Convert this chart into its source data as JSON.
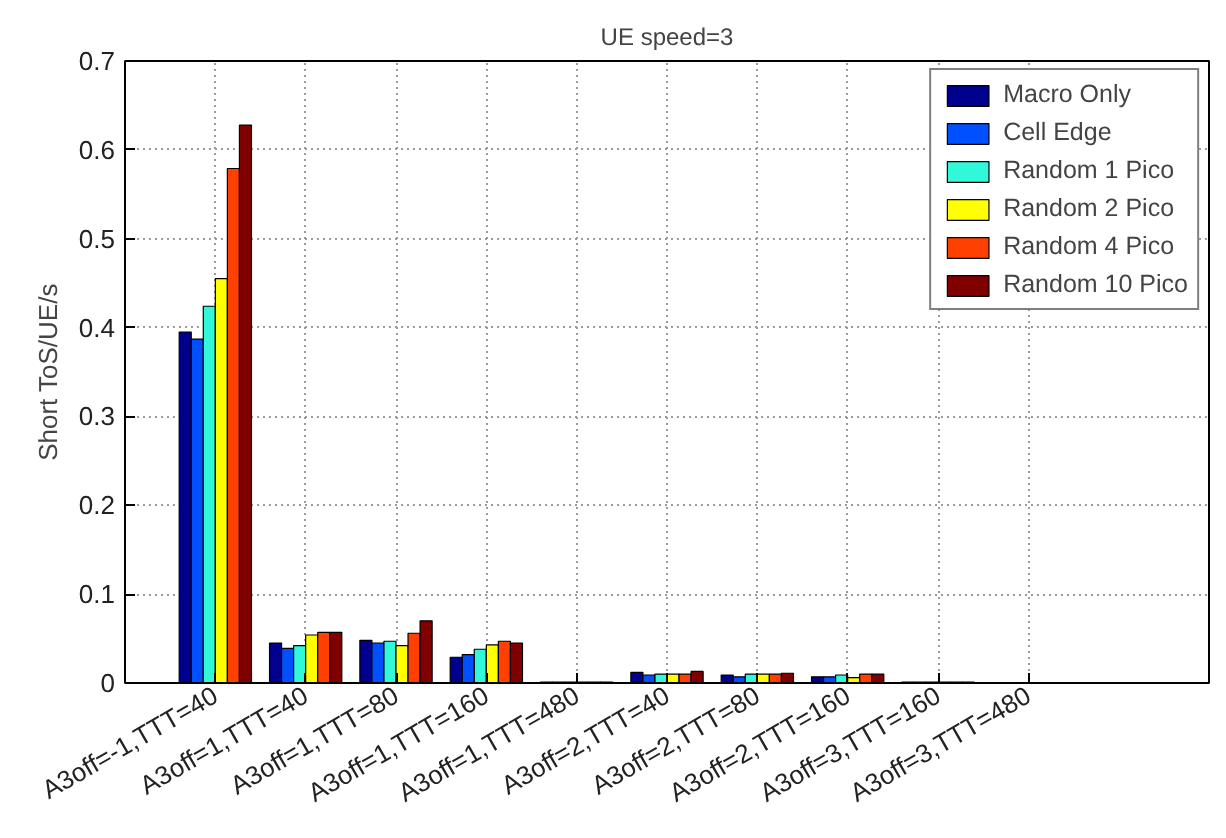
{
  "chart_data": {
    "type": "bar",
    "title": "UE speed=3",
    "ylabel": "Short ToS/UE/s",
    "categories": [
      "A3off=-1,TTT=40",
      "A3off=1,TTT=40",
      "A3off=1,TTT=80",
      "A3off=1,TTT=160",
      "A3off=1,TTT=480",
      "A3off=2,TTT=40",
      "A3off=2,TTT=80",
      "A3off=2,TTT=160",
      "A3off=3,TTT=160",
      "A3off=3,TTT=480"
    ],
    "series": [
      {
        "name": "Macro Only",
        "color": "#00008f",
        "values": [
          0.395,
          0.045,
          0.048,
          0.029,
          0.001,
          0.012,
          0.009,
          0.007,
          0.001,
          null
        ]
      },
      {
        "name": "Cell Edge",
        "color": "#0050ff",
        "values": [
          0.387,
          0.039,
          0.045,
          0.032,
          0.001,
          0.009,
          0.007,
          0.007,
          0.001,
          null
        ]
      },
      {
        "name": "Random 1 Pico",
        "color": "#30f8d8",
        "values": [
          0.424,
          0.042,
          0.047,
          0.038,
          0.001,
          0.01,
          0.01,
          0.009,
          0.001,
          null
        ]
      },
      {
        "name": "Random 2 Pico",
        "color": "#ffff00",
        "values": [
          0.455,
          0.054,
          0.042,
          0.043,
          0.001,
          0.01,
          0.01,
          0.006,
          0.001,
          null
        ]
      },
      {
        "name": "Random 4 Pico",
        "color": "#ff4000",
        "values": [
          0.579,
          0.057,
          0.056,
          0.047,
          0.001,
          0.01,
          0.01,
          0.01,
          0.001,
          null
        ]
      },
      {
        "name": "Random 10 Pico",
        "color": "#800000",
        "values": [
          0.628,
          0.057,
          0.07,
          0.045,
          0.001,
          0.013,
          0.011,
          0.01,
          0.001,
          null
        ]
      }
    ],
    "ylim": [
      0,
      0.7
    ],
    "yticks": [
      0,
      0.1,
      0.2,
      0.3,
      0.4,
      0.5,
      0.6,
      0.7
    ],
    "grid": true,
    "legend": "top right"
  }
}
